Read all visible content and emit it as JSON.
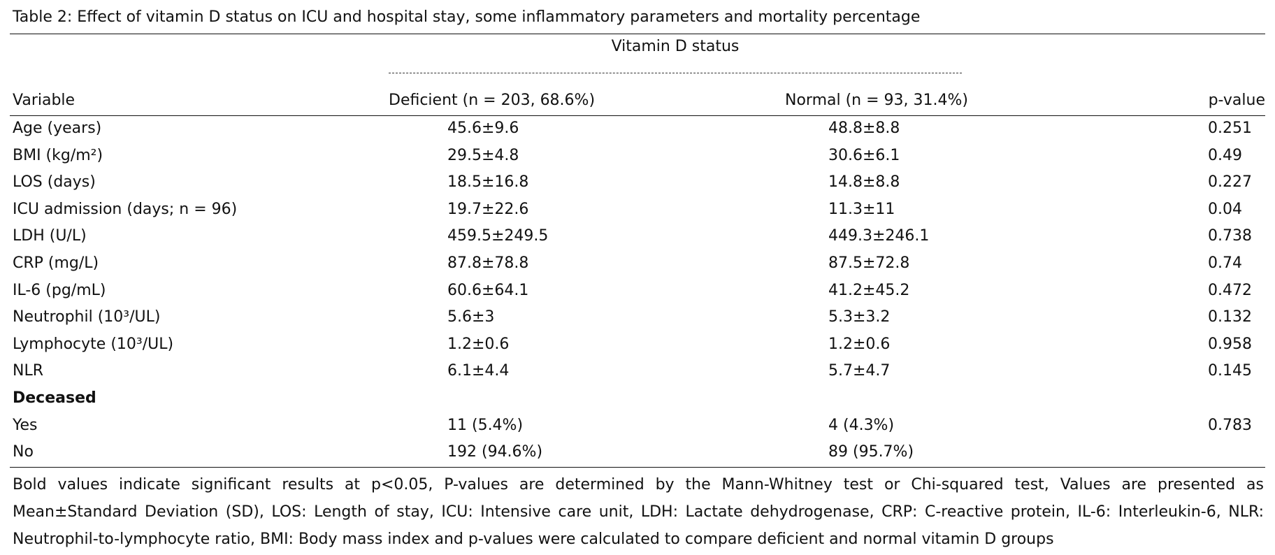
{
  "title": "Table 2: Effect of vitamin D status on ICU and hospital stay, some inflammatory parameters and   mortality percentage",
  "table": {
    "group_header": "Vitamin D status",
    "columns": [
      "Variable",
      "Deficient (n = 203, 68.6%)",
      "Normal (n = 93, 31.4%)",
      "p-value"
    ],
    "rows": [
      [
        "Age (years)",
        "45.6±9.6",
        "48.8±8.8",
        "0.251"
      ],
      [
        "BMI (kg/m²)",
        "29.5±4.8",
        "30.6±6.1",
        "0.49"
      ],
      [
        "LOS (days)",
        "18.5±16.8",
        "14.8±8.8",
        "0.227"
      ],
      [
        "ICU admission (days; n = 96)",
        "19.7±22.6",
        "11.3±11",
        "0.04"
      ],
      [
        "LDH (U/L)",
        "459.5±249.5",
        "449.3±246.1",
        "0.738"
      ],
      [
        "CRP (mg/L)",
        "87.8±78.8",
        "87.5±72.8",
        "0.74"
      ],
      [
        "IL-6 (pg/mL)",
        "60.6±64.1",
        "41.2±45.2",
        "0.472"
      ],
      [
        "Neutrophil (10³/UL)",
        "5.6±3",
        "5.3±3.2",
        "0.132"
      ],
      [
        "Lymphocyte (10³/UL)",
        "1.2±0.6",
        "1.2±0.6",
        "0.958"
      ],
      [
        "NLR",
        "6.1±4.4",
        "5.7±4.7",
        "0.145"
      ],
      [
        "Deceased"
      ],
      [
        "Yes",
        "11 (5.4%)",
        "4 (4.3%)",
        "0.783"
      ],
      [
        "No",
        "192 (94.6%)",
        "89 (95.7%)"
      ]
    ]
  },
  "footnote": "Bold values indicate significant results at p<0.05, P-values are determined by the Mann-Whitney test or Chi-squared test, Values are presented as Mean±Standard Deviation (SD), LOS: Length of stay, ICU: Intensive care unit, LDH: Lactate dehydrogenase, CRP: C-reactive protein, IL-6: Interleukin-6, NLR: Neutrophil-to-lymphocyte ratio, BMI: Body mass index and p-values were calculated to compare deficient and normal vitamin D groups"
}
